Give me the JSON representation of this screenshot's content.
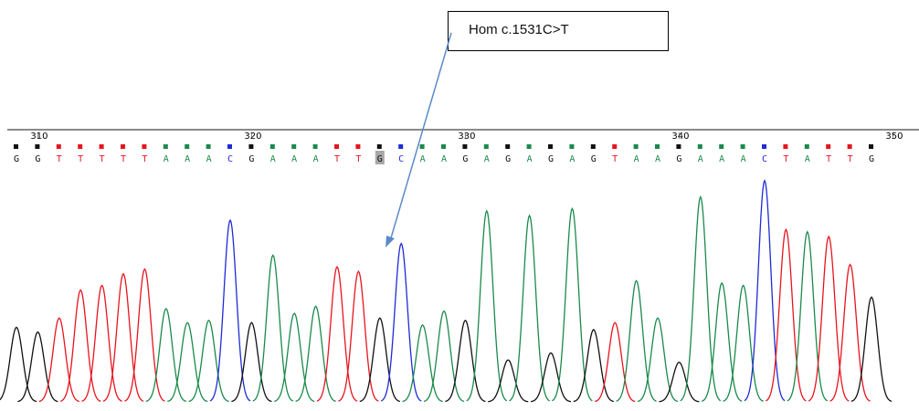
{
  "annotation": {
    "text": "Hom c.1531C>T"
  },
  "colors": {
    "A": "#1a8a4a",
    "C": "#1f2bd6",
    "G": "#111111",
    "T": "#e8141e",
    "highlight": "#a8a8a8",
    "ruler": "#8a8a8a",
    "arrow": "#5b8ac9"
  },
  "chart_data": {
    "type": "line",
    "title": "",
    "xlabel": "",
    "ylabel": "",
    "position_ticks": [
      310,
      320,
      330,
      340,
      350
    ],
    "first_position": 309,
    "sequence": [
      "G",
      "G",
      "T",
      "T",
      "T",
      "T",
      "T",
      "A",
      "A",
      "A",
      "C",
      "G",
      "A",
      "A",
      "A",
      "T",
      "T",
      "G",
      "C",
      "A",
      "A",
      "G",
      "A",
      "G",
      "A",
      "G",
      "A",
      "G",
      "T",
      "A",
      "A",
      "G",
      "A",
      "A",
      "A",
      "C",
      "T",
      "A",
      "T",
      "T",
      "G"
    ],
    "highlighted_positions": [
      326
    ],
    "peak_heights": [
      0.32,
      0.3,
      0.36,
      0.48,
      0.5,
      0.55,
      0.57,
      0.4,
      0.34,
      0.35,
      0.78,
      0.34,
      0.63,
      0.38,
      0.41,
      0.58,
      0.56,
      0.36,
      0.68,
      0.33,
      0.39,
      0.35,
      0.82,
      0.18,
      0.8,
      0.21,
      0.83,
      0.31,
      0.34,
      0.52,
      0.36,
      0.17,
      0.88,
      0.51,
      0.5,
      0.95,
      0.74,
      0.73,
      0.71,
      0.59,
      0.45
    ]
  }
}
